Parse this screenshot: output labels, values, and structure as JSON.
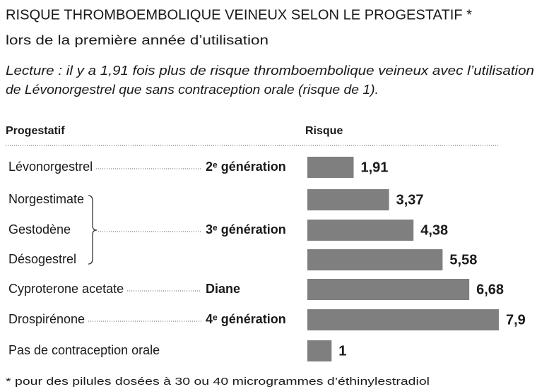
{
  "chart_data": {
    "type": "bar",
    "orientation": "horizontal",
    "title": "RISQUE THROMBOEMBOLIQUE VEINEUX SELON LE PROGESTATIF *",
    "subtitle": "lors de la première année d’utilisation",
    "note_lines": [
      "Lecture : il y a 1,91 fois plus de risque thromboembolique veineux avec l’utilisation",
      "de Lévonorgestrel que sans contraception orale (risque de 1)."
    ],
    "column_headers": [
      "Progestatif",
      "Risque"
    ],
    "categories": [
      "Lévonorgestrel",
      "Norgestimate",
      "Gestodène",
      "Désogestrel",
      "Cyproterone acetate",
      "Drospirénone",
      "Pas de contraception orale"
    ],
    "values": [
      1.91,
      3.37,
      4.38,
      5.58,
      6.68,
      7.9,
      1
    ],
    "value_labels": [
      "1,91",
      "3,37",
      "4,38",
      "5,58",
      "6,68",
      "7,9",
      "1"
    ],
    "color": "#7f7f7f",
    "groups": [
      {
        "label": "2ᵉ génération",
        "rows": [
          0
        ]
      },
      {
        "label": "3ᵉ génération",
        "rows": [
          1,
          2,
          3
        ]
      },
      {
        "label": "Diane",
        "rows": [
          4
        ]
      },
      {
        "label": "4ᵉ génération",
        "rows": [
          5
        ]
      }
    ],
    "footnote": "* pour des pilules dosées à 30 ou 40 microgrammes d’éthinylestradiol"
  }
}
